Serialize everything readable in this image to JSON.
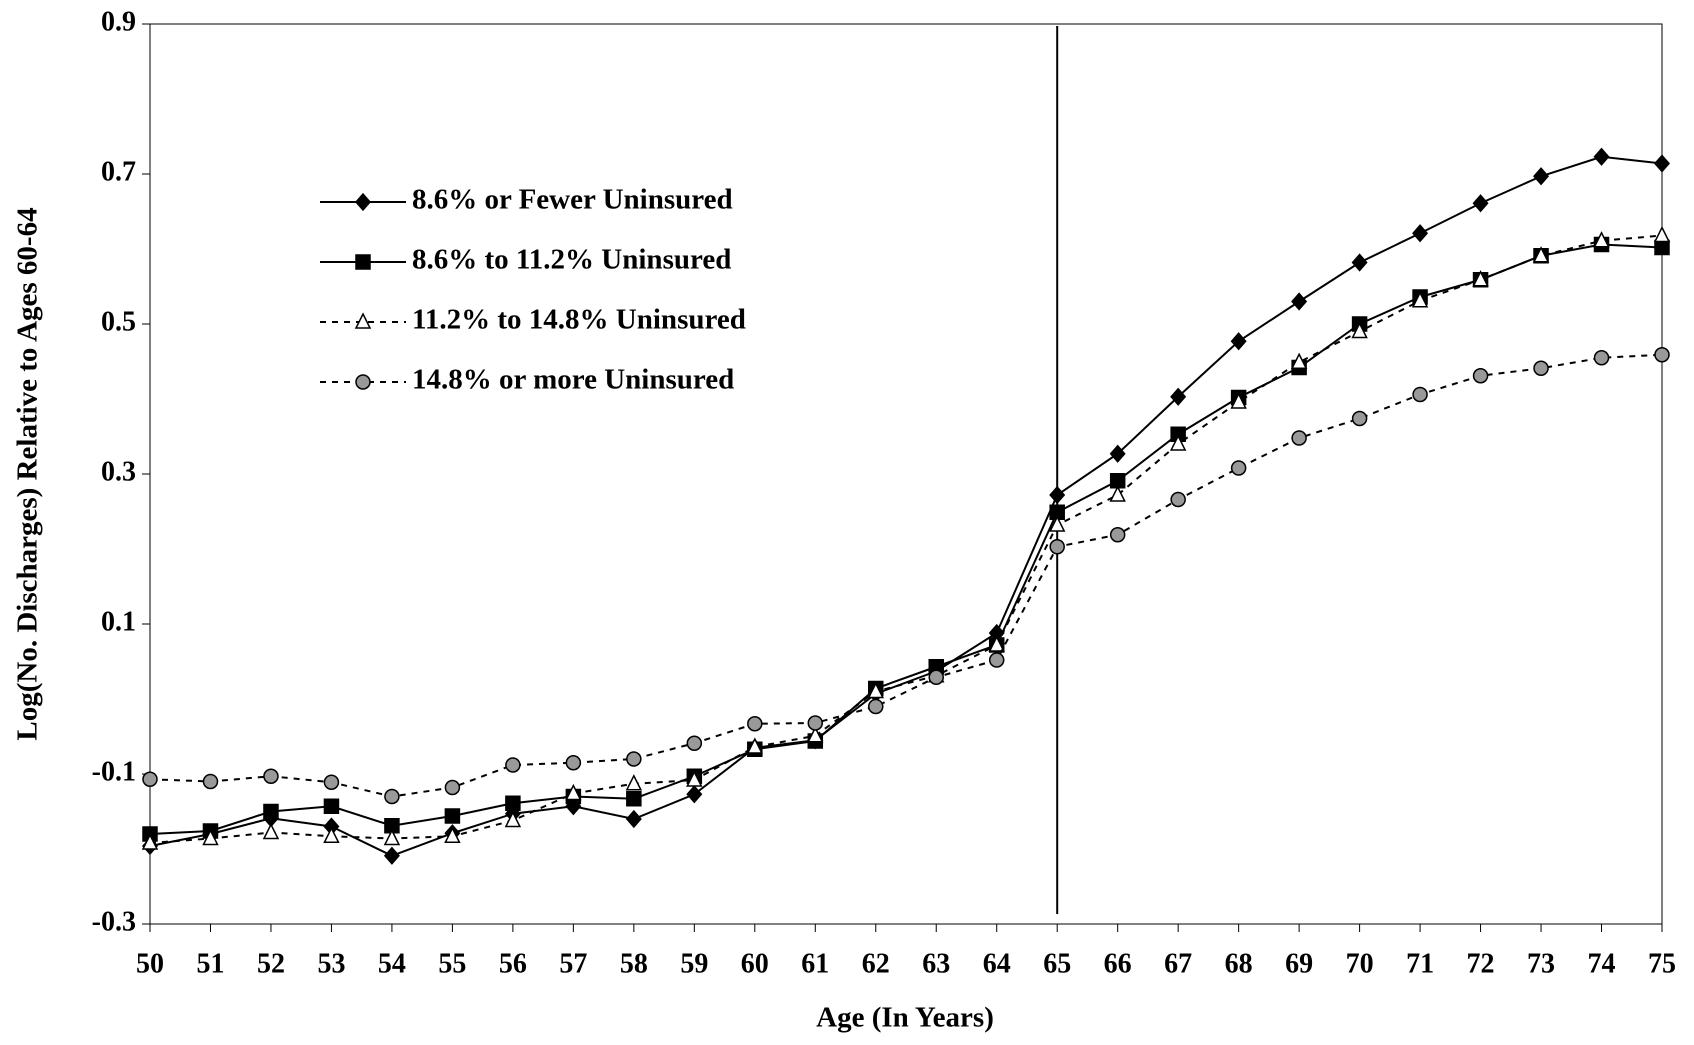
{
  "chart_data": {
    "type": "line",
    "x_label": "Age (In Years)",
    "y_label": "Log(No. Discharges) Relative to Ages 60-64",
    "x": [
      50,
      51,
      52,
      53,
      54,
      55,
      56,
      57,
      58,
      59,
      60,
      61,
      62,
      63,
      64,
      65,
      66,
      67,
      68,
      69,
      70,
      71,
      72,
      73,
      74,
      75
    ],
    "xlim": [
      50,
      75
    ],
    "xticks": [
      50,
      51,
      52,
      53,
      54,
      55,
      56,
      57,
      58,
      59,
      60,
      61,
      62,
      63,
      64,
      65,
      66,
      67,
      68,
      69,
      70,
      71,
      72,
      73,
      74,
      75
    ],
    "ylim": [
      -0.3,
      0.9
    ],
    "yticks": [
      -0.3,
      -0.1,
      0.1,
      0.3,
      0.5,
      0.7,
      0.9
    ],
    "vline_x": 65,
    "legend_position": "upper left",
    "series": [
      {
        "name": "8.6% or Fewer Uninsured",
        "color": "#000000",
        "marker": "diamond",
        "dashed": false,
        "values": [
          -0.196,
          -0.18,
          -0.159,
          -0.17,
          -0.209,
          -0.179,
          -0.153,
          -0.143,
          -0.16,
          -0.127,
          -0.065,
          -0.055,
          0.007,
          0.037,
          0.088,
          0.272,
          0.327,
          0.403,
          0.477,
          0.53,
          0.582,
          0.621,
          0.661,
          0.697,
          0.723,
          0.714
        ]
      },
      {
        "name": "8.6% to 11.2% Uninsured",
        "color": "#000000",
        "marker": "square",
        "dashed": false,
        "values": [
          -0.18,
          -0.176,
          -0.15,
          -0.143,
          -0.169,
          -0.156,
          -0.139,
          -0.13,
          -0.133,
          -0.103,
          -0.067,
          -0.056,
          0.014,
          0.043,
          0.072,
          0.249,
          0.291,
          0.353,
          0.402,
          0.442,
          0.5,
          0.536,
          0.559,
          0.591,
          0.606,
          0.602
        ]
      },
      {
        "name": "11.2% to 14.8% Uninsured",
        "color": "#ffffff",
        "marker": "triangle",
        "dashed": true,
        "values": [
          -0.192,
          -0.186,
          -0.178,
          -0.183,
          -0.186,
          -0.183,
          -0.162,
          -0.126,
          -0.113,
          -0.108,
          -0.064,
          -0.049,
          0.01,
          0.031,
          0.072,
          0.232,
          0.272,
          0.34,
          0.396,
          0.449,
          0.49,
          0.531,
          0.559,
          0.591,
          0.611,
          0.618
        ]
      },
      {
        "name": "14.8% or more Uninsured",
        "color": "#999999",
        "marker": "circle",
        "dashed": true,
        "values": [
          -0.107,
          -0.11,
          -0.103,
          -0.111,
          -0.13,
          -0.118,
          -0.088,
          -0.085,
          -0.08,
          -0.059,
          -0.033,
          -0.032,
          -0.01,
          0.029,
          0.052,
          0.203,
          0.219,
          0.266,
          0.308,
          0.348,
          0.374,
          0.406,
          0.431,
          0.441,
          0.455,
          0.459
        ]
      }
    ]
  }
}
